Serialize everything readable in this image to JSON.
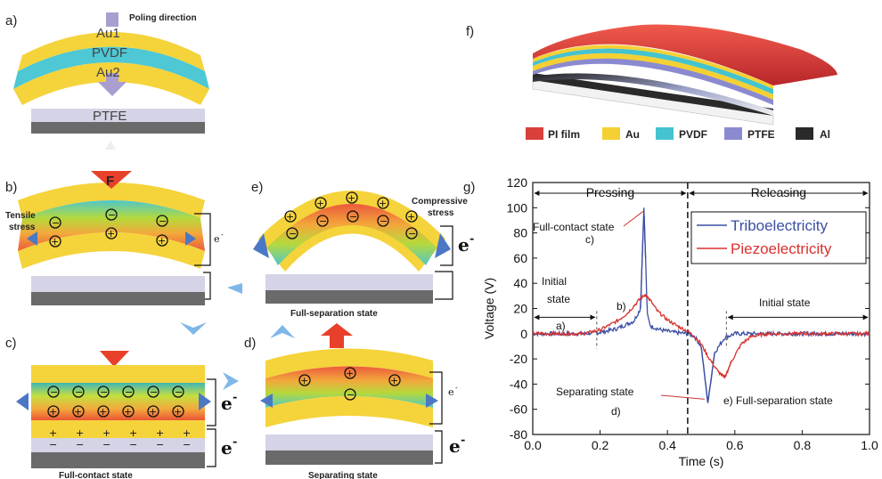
{
  "panels": {
    "a": {
      "label": "a)",
      "poling": "Poling direction",
      "au1": "Au1",
      "pvdf": "PVDF",
      "au2": "Au2",
      "ptfe": "PTFE"
    },
    "b": {
      "label": "b)",
      "force": "F",
      "tensile_line1": "Tensile",
      "tensile_line2": "stress",
      "electron": "e",
      "electron_sup": "-"
    },
    "c": {
      "label": "c)",
      "caption": "Full-contact state",
      "electron": "e",
      "electron_sup": "-"
    },
    "d": {
      "label": "d)",
      "caption": "Separating state",
      "electron": "e",
      "electron_sup": "-"
    },
    "e": {
      "label": "e)",
      "caption": "Full-separation state",
      "compressive_line1": "Compressive",
      "compressive_line2": "stress",
      "electron": "e",
      "electron_sup": "-"
    },
    "f": {
      "label": "f)",
      "legend": [
        {
          "name": "PI film",
          "color": "#d9403c"
        },
        {
          "name": "Au",
          "color": "#f5d033"
        },
        {
          "name": "PVDF",
          "color": "#45c3cf"
        },
        {
          "name": "PTFE",
          "color": "#8b8ad0"
        },
        {
          "name": "Al",
          "color": "#2a2a2a"
        }
      ]
    },
    "g": {
      "label": "g)"
    }
  },
  "colors": {
    "au": "#f5d33b",
    "pvdf": "#4dc8d4",
    "ptfe": "#d4d4e6",
    "al": "#6a6a6a",
    "arrow_red": "#e8402a",
    "arrow_blue": "#4a78c4",
    "poling_arrow": "#a99ed0"
  },
  "chart_data": {
    "type": "line",
    "xlabel": "Time (s)",
    "ylabel": "Voltage (V)",
    "xlim": [
      0.0,
      1.0
    ],
    "ylim": [
      -80,
      120
    ],
    "xticks": [
      "0.0",
      "0.2",
      "0.4",
      "0.6",
      "0.8",
      "1.0"
    ],
    "yticks": [
      "120",
      "100",
      "80",
      "60",
      "40",
      "20",
      "0",
      "-20",
      "-40",
      "-60",
      "-80"
    ],
    "legend_position": "top-right",
    "phase_labels": [
      "Pressing",
      "Releasing"
    ],
    "phase_divider_x": 0.46,
    "series": [
      {
        "name": "Triboelectricity",
        "color": "#3b4fa3",
        "x": [
          0.0,
          0.05,
          0.1,
          0.15,
          0.2,
          0.25,
          0.3,
          0.32,
          0.33,
          0.335,
          0.34,
          0.35,
          0.38,
          0.42,
          0.46,
          0.48,
          0.5,
          0.52,
          0.54,
          0.57,
          0.6,
          0.65,
          0.7,
          0.8,
          0.9,
          1.0
        ],
        "y": [
          0,
          0,
          0,
          0,
          1,
          4,
          10,
          20,
          100,
          60,
          15,
          6,
          3,
          1,
          0,
          -2,
          -10,
          -55,
          -15,
          -3,
          0,
          0,
          0,
          0,
          0,
          0
        ]
      },
      {
        "name": "Piezoelectricity",
        "color": "#d8322e",
        "x": [
          0.0,
          0.05,
          0.1,
          0.15,
          0.2,
          0.25,
          0.28,
          0.3,
          0.32,
          0.335,
          0.35,
          0.37,
          0.4,
          0.43,
          0.46,
          0.48,
          0.5,
          0.52,
          0.55,
          0.57,
          0.59,
          0.62,
          0.65,
          0.7,
          0.8,
          0.9,
          1.0
        ],
        "y": [
          0,
          0,
          0,
          0,
          3,
          10,
          16,
          22,
          28,
          31,
          26,
          18,
          11,
          6,
          2,
          -2,
          -8,
          -18,
          -30,
          -35,
          -22,
          -8,
          -2,
          0,
          0,
          0,
          0
        ]
      }
    ],
    "annotations": [
      {
        "text": "Full-contact state",
        "x": 0.33,
        "y": 100
      },
      {
        "text": "c)",
        "x": 0.33,
        "y": 100
      },
      {
        "text": "Initial",
        "x": 0.0,
        "y": 0
      },
      {
        "text": "state",
        "x": 0.0,
        "y": 0
      },
      {
        "text": "a)",
        "x": 0.1,
        "y": 0
      },
      {
        "text": "b)",
        "x": 0.3,
        "y": 30
      },
      {
        "text": "Initial state",
        "x": 0.8,
        "y": 0
      },
      {
        "text": "Separating state",
        "x": 0.52,
        "y": -55
      },
      {
        "text": "d)",
        "x": 0.52,
        "y": -55
      },
      {
        "text": "e)",
        "x": 0.57,
        "y": -35
      },
      {
        "text": "Full-separation state",
        "x": 0.57,
        "y": -35
      }
    ]
  }
}
